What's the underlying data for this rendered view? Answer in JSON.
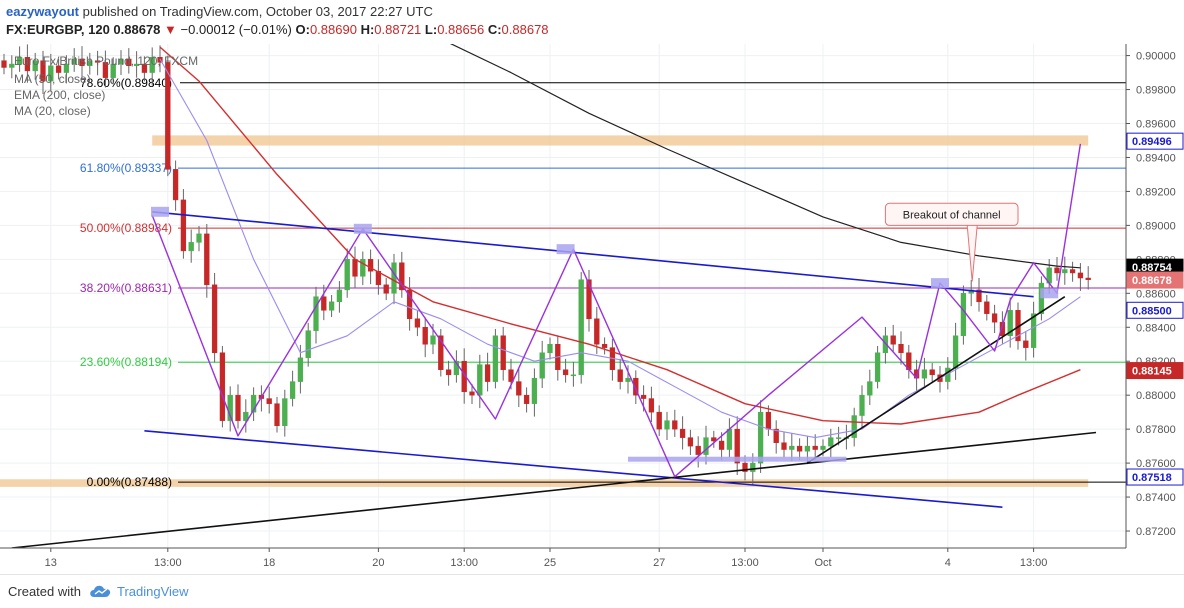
{
  "header": {
    "author": "eazywayout",
    "published": "published on TradingView.com, October 03, 2017 22:27 UTC",
    "symbol": "FX:EURGBP, 120",
    "last": "0.88678",
    "arrow": "▼",
    "change": "−0.00012 (−0.01%)",
    "o_label": "O:",
    "o_value": "0.88690",
    "h_label": "H:",
    "h_value": "0.88721",
    "l_label": "L:",
    "l_value": "0.88656",
    "c_label": "C:",
    "c_value": "0.88678"
  },
  "legend": {
    "title": "Euro Fx/British Pound, 120, FXCM",
    "ma50": "MA (50, close)",
    "ema200": "EMA (200, close)",
    "ma20": "MA (20, close)"
  },
  "footer": {
    "created": "Created with",
    "brand": "TradingView",
    "logo_icon": "tradingview-cloud-icon"
  },
  "colors": {
    "up": "#4caf50",
    "down": "#c62828",
    "ma50": "#d32f2f",
    "ema200": "#222222",
    "ma20": "#9b8df0",
    "channel": "#1a1ad1",
    "pattern": "#9b30e0",
    "zone": "#f2c48d"
  },
  "chart_data": {
    "type": "candlestick",
    "y_axis": {
      "range": [
        0.871,
        0.9008
      ],
      "ticks": [
        "0.90000",
        "0.89800",
        "0.89600",
        "0.89400",
        "0.89200",
        "0.89000",
        "0.88800",
        "0.88600",
        "0.88400",
        "0.88200",
        "0.88000",
        "0.87800",
        "0.87600",
        "0.87400",
        "0.87200"
      ],
      "tick_values": [
        0.9,
        0.898,
        0.896,
        0.894,
        0.892,
        0.89,
        0.888,
        0.886,
        0.884,
        0.882,
        0.88,
        0.878,
        0.876,
        0.874,
        0.872
      ]
    },
    "x_axis": {
      "labels": [
        "13",
        "13:00",
        "18",
        "20",
        "13:00",
        "25",
        "27",
        "13:00",
        "Oct",
        "4",
        "13:00"
      ],
      "label_bar_index": [
        6,
        21,
        34,
        48,
        59,
        70,
        84,
        95,
        105,
        121,
        132
      ]
    },
    "bar_count": 140,
    "closes": [
      0.8993,
      0.8995,
      0.8999,
      0.8991,
      0.8997,
      0.8985,
      0.8994,
      0.899,
      0.8995,
      0.8998,
      0.8994,
      0.8997,
      0.8996,
      0.8987,
      0.8995,
      0.8998,
      0.8994,
      0.8995,
      0.899,
      0.8999,
      0.8996,
      0.8933,
      0.8915,
      0.8885,
      0.889,
      0.8895,
      0.8865,
      0.8825,
      0.8785,
      0.88,
      0.8785,
      0.879,
      0.88,
      0.8798,
      0.8795,
      0.8782,
      0.8798,
      0.8808,
      0.8822,
      0.8838,
      0.8858,
      0.885,
      0.8855,
      0.8862,
      0.888,
      0.887,
      0.888,
      0.8873,
      0.8865,
      0.886,
      0.8878,
      0.8862,
      0.8845,
      0.884,
      0.883,
      0.8835,
      0.8815,
      0.8812,
      0.882,
      0.8802,
      0.88,
      0.8818,
      0.8808,
      0.8835,
      0.8815,
      0.8808,
      0.88,
      0.8795,
      0.881,
      0.8825,
      0.883,
      0.8815,
      0.8812,
      0.8812,
      0.8868,
      0.8845,
      0.883,
      0.8828,
      0.8815,
      0.8808,
      0.881,
      0.88,
      0.8798,
      0.879,
      0.878,
      0.8785,
      0.878,
      0.8775,
      0.877,
      0.8765,
      0.8775,
      0.8773,
      0.8768,
      0.878,
      0.876,
      0.8755,
      0.876,
      0.879,
      0.878,
      0.8772,
      0.8768,
      0.877,
      0.8767,
      0.877,
      0.8768,
      0.877,
      0.8775,
      0.8775,
      0.8775,
      0.8788,
      0.88,
      0.8808,
      0.8825,
      0.8835,
      0.883,
      0.8825,
      0.8815,
      0.881,
      0.8815,
      0.8812,
      0.8808,
      0.8816,
      0.8835,
      0.886,
      0.8862,
      0.8855,
      0.8848,
      0.8843,
      0.8835,
      0.885,
      0.8832,
      0.8828,
      0.8848,
      0.8866,
      0.8875,
      0.8872,
      0.8874,
      0.8872,
      0.8869,
      0.8868
    ],
    "last_price": 0.88678,
    "indicators": {
      "ma50": {
        "name": "MA (50, close)",
        "color": "#d32f2f",
        "points": [
          [
            20,
            0.9005
          ],
          [
            25,
            0.8985
          ],
          [
            35,
            0.893
          ],
          [
            45,
            0.888
          ],
          [
            55,
            0.8855
          ],
          [
            65,
            0.8842
          ],
          [
            75,
            0.883
          ],
          [
            85,
            0.8815
          ],
          [
            95,
            0.8795
          ],
          [
            105,
            0.8785
          ],
          [
            115,
            0.8783
          ],
          [
            125,
            0.879
          ],
          [
            130,
            0.88
          ],
          [
            138,
            0.8815
          ]
        ]
      },
      "ema200": {
        "name": "EMA (200, close)",
        "color": "#222222",
        "points": [
          [
            55,
            0.9012
          ],
          [
            65,
            0.899
          ],
          [
            75,
            0.8966
          ],
          [
            85,
            0.8945
          ],
          [
            95,
            0.8925
          ],
          [
            105,
            0.8905
          ],
          [
            115,
            0.889
          ],
          [
            125,
            0.8882
          ],
          [
            135,
            0.8876
          ],
          [
            138,
            0.8875
          ]
        ]
      },
      "ma20": {
        "name": "MA (20, close)",
        "color": "#9b8df0",
        "points": [
          [
            20,
            0.8998
          ],
          [
            26,
            0.895
          ],
          [
            32,
            0.888
          ],
          [
            38,
            0.8825
          ],
          [
            44,
            0.8835
          ],
          [
            50,
            0.8855
          ],
          [
            56,
            0.8845
          ],
          [
            62,
            0.883
          ],
          [
            68,
            0.882
          ],
          [
            74,
            0.8825
          ],
          [
            80,
            0.882
          ],
          [
            86,
            0.8805
          ],
          [
            92,
            0.879
          ],
          [
            98,
            0.878
          ],
          [
            104,
            0.8775
          ],
          [
            110,
            0.878
          ],
          [
            116,
            0.88
          ],
          [
            122,
            0.8815
          ],
          [
            128,
            0.883
          ],
          [
            134,
            0.8845
          ],
          [
            138,
            0.8858
          ]
        ]
      }
    },
    "fibonacci": [
      {
        "label": "78.60%(0.89840)",
        "value": 0.8984,
        "color": "#000000"
      },
      {
        "label": "61.80%(0.89337)",
        "value": 0.89337,
        "color": "#2f6fd6"
      },
      {
        "label": "50.00%(0.88984)",
        "value": 0.88984,
        "color": "#d32f2f"
      },
      {
        "label": "38.20%(0.88631)",
        "value": 0.88631,
        "color": "#9c27b0"
      },
      {
        "label": "23.60%(0.88194)",
        "value": 0.88194,
        "color": "#2ecc40"
      },
      {
        "label": "0.00%(0.87488)",
        "value": 0.87488,
        "color": "#000000"
      }
    ],
    "price_labels": [
      {
        "text": "0.89496",
        "value": 0.89496,
        "bg": "#ffffff",
        "fg": "#1a1ad1",
        "border": "#1a1ad1"
      },
      {
        "text": "0.88754",
        "value": 0.88754,
        "bg": "#000000",
        "fg": "#ffffff"
      },
      {
        "text": "0.88678",
        "value": 0.88678,
        "bg": "#e57373",
        "fg": "#ffffff"
      },
      {
        "text": "0.88500",
        "value": 0.885,
        "bg": "#ffffff",
        "fg": "#1a1ad1",
        "border": "#1a1ad1"
      },
      {
        "text": "0.88145",
        "value": 0.88145,
        "bg": "#c62828",
        "fg": "#ffffff"
      },
      {
        "text": "0.87518",
        "value": 0.87518,
        "bg": "#ffffff",
        "fg": "#1a1ad1",
        "border": "#1a1ad1"
      }
    ],
    "zones": [
      {
        "from_bar": 19,
        "to_bar": 139,
        "y1": 0.8953,
        "y2": 0.8947,
        "color": "#f2c48d"
      },
      {
        "from_bar": -1,
        "to_bar": 139,
        "y1": 0.87505,
        "y2": 0.8746,
        "color": "#f2c48d"
      }
    ],
    "channel_lines": [
      [
        [
          19,
          0.8908
        ],
        [
          132,
          0.8858
        ]
      ],
      [
        [
          18,
          0.8779
        ],
        [
          128,
          0.8734
        ]
      ]
    ],
    "trend_lines": [
      [
        [
          1,
          0.871
        ],
        [
          140,
          0.8778
        ]
      ],
      [
        [
          103,
          0.876
        ],
        [
          136,
          0.8858
        ]
      ]
    ],
    "pattern_path": [
      [
        19,
        0.8906
      ],
      [
        30,
        0.8776
      ],
      [
        46,
        0.8898
      ],
      [
        63,
        0.8786
      ],
      [
        73,
        0.8886
      ],
      [
        86,
        0.8752
      ],
      [
        98,
        0.88
      ],
      [
        110,
        0.8846
      ],
      [
        117,
        0.881
      ],
      [
        120,
        0.8866
      ],
      [
        123,
        0.885
      ],
      [
        127,
        0.8826
      ],
      [
        129,
        0.8856
      ],
      [
        132,
        0.8878
      ],
      [
        135,
        0.886
      ],
      [
        138,
        0.8948
      ]
    ],
    "pattern_marks": [
      [
        20,
        0.8908
      ],
      [
        46,
        0.8898
      ],
      [
        72,
        0.8886
      ],
      [
        120,
        0.8866
      ],
      [
        134,
        0.886
      ]
    ],
    "support_marks": [
      [
        80,
        0.8762
      ],
      [
        108,
        0.8762
      ]
    ],
    "annotation": {
      "text": "Breakout of channel",
      "value_top": 0.8913,
      "value_bottom": 0.89,
      "from_bar": 113,
      "to_bar": 130,
      "pointer_bar": 124,
      "pointer_value": 0.8867
    }
  }
}
